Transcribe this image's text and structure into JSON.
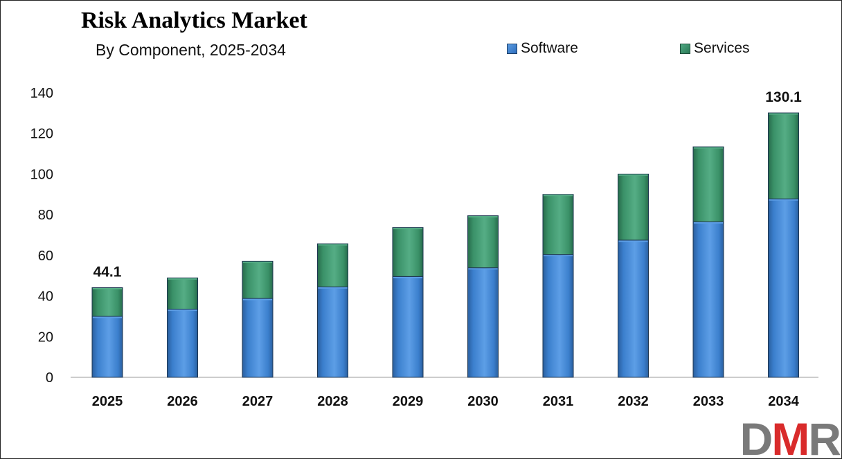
{
  "chart_data": {
    "type": "bar",
    "stacked": true,
    "title": "Risk Analytics Market",
    "subtitle": "By Component, 2025-2034",
    "categories": [
      "2025",
      "2026",
      "2027",
      "2028",
      "2029",
      "2030",
      "2031",
      "2032",
      "2033",
      "2034"
    ],
    "series": [
      {
        "name": "Software",
        "values": [
          30.0,
          33.5,
          38.8,
          44.5,
          49.6,
          53.9,
          60.4,
          67.5,
          76.5,
          87.8
        ]
      },
      {
        "name": "Services",
        "values": [
          14.1,
          15.4,
          18.3,
          21.2,
          24.1,
          25.6,
          29.6,
          32.5,
          36.9,
          42.3
        ]
      }
    ],
    "data_labels": [
      {
        "category": "2025",
        "text": "44.1"
      },
      {
        "category": "2034",
        "text": "130.1"
      }
    ],
    "ylim": [
      0,
      140
    ],
    "yticks": [
      0,
      20,
      40,
      60,
      80,
      100,
      120,
      140
    ],
    "xlabel": "",
    "ylabel": "",
    "legend_position": "top-right",
    "grid": false,
    "colors": {
      "Software": "#3b7fcd",
      "Software_highlight": "#5d9ee6",
      "Software_shadow": "#2a5f9e",
      "Services": "#3a9168",
      "Services_highlight": "#55ad85",
      "Services_shadow": "#276b4b",
      "edge": "#1e3550"
    }
  },
  "logo": {
    "text_part1": "D",
    "text_part2": "M",
    "text_part3": "R"
  }
}
